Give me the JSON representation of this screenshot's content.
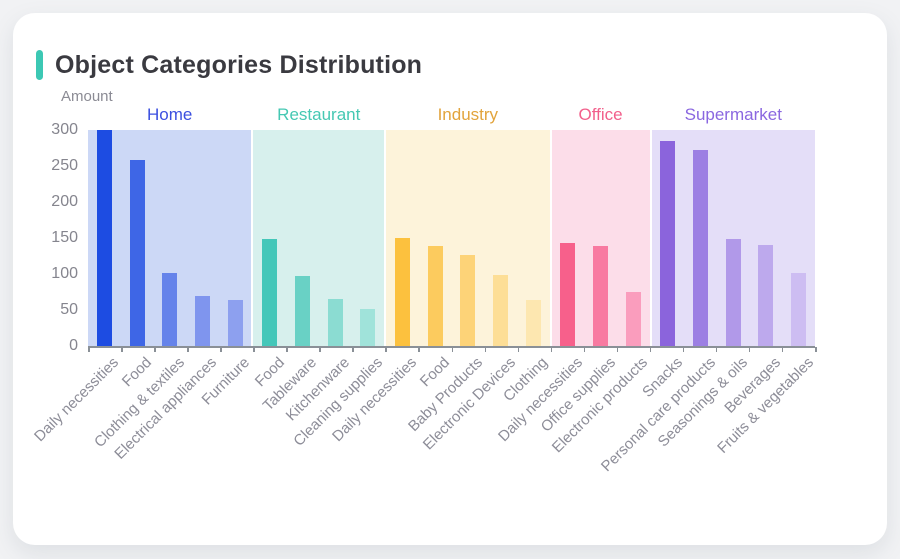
{
  "page": {
    "background_color": "#f1f2f4",
    "card_color": "#ffffff"
  },
  "header": {
    "title": "Object Categories Distribution",
    "accent_color": "#3cc8b4"
  },
  "chart_data": {
    "type": "bar",
    "title": "Object Categories Distribution",
    "xlabel": "",
    "ylabel": "Amount",
    "ylim": [
      0,
      300
    ],
    "yticks": [
      0,
      50,
      100,
      150,
      200,
      250,
      300
    ],
    "grid": false,
    "legend_position": "none",
    "groups": [
      {
        "name": "Home",
        "label_color": "#3c50e0",
        "band_color": "#ccd8f6",
        "categories": [
          "Daily necessities",
          "Food",
          "Clothing & textiles",
          "Electrical appliances",
          "Furniture"
        ],
        "values": [
          300,
          258,
          102,
          69,
          64
        ],
        "bar_colors": [
          "#1d4ce2",
          "#3e66e6",
          "#6583ea",
          "#7f95ee",
          "#8da0ef"
        ]
      },
      {
        "name": "Restaurant",
        "label_color": "#45c8b3",
        "band_color": "#d7f0ed",
        "categories": [
          "Food",
          "Tableware",
          "Kitchenware",
          "Cleaning supplies"
        ],
        "values": [
          149,
          97,
          65,
          51
        ],
        "bar_colors": [
          "#44c7b9",
          "#69d1c5",
          "#8bdcd2",
          "#a0e3da"
        ]
      },
      {
        "name": "Industry",
        "label_color": "#e2a43c",
        "band_color": "#fdf3da",
        "categories": [
          "Daily necessities",
          "Food",
          "Baby Products",
          "Electronic Devices",
          "Clothing"
        ],
        "values": [
          150,
          139,
          126,
          99,
          64
        ],
        "bar_colors": [
          "#fcc13e",
          "#fccb5e",
          "#fdd378",
          "#fdde96",
          "#fde7b0"
        ]
      },
      {
        "name": "Office",
        "label_color": "#f2608c",
        "band_color": "#fcdde9",
        "categories": [
          "Daily necessities",
          "Office supplies",
          "Electronic products"
        ],
        "values": [
          143,
          139,
          75
        ],
        "bar_colors": [
          "#f7608b",
          "#f87aa1",
          "#fa9dbd"
        ]
      },
      {
        "name": "Supermarket",
        "label_color": "#8a67e0",
        "band_color": "#e4def8",
        "categories": [
          "Snacks",
          "Personal care products",
          "Seasonings & oils",
          "Beverages",
          "Fruits & vegetables"
        ],
        "values": [
          285,
          272,
          149,
          140,
          101
        ],
        "bar_colors": [
          "#8b64dc",
          "#9c7fe3",
          "#b199e9",
          "#bda9ed",
          "#cdbdf2"
        ]
      }
    ]
  }
}
